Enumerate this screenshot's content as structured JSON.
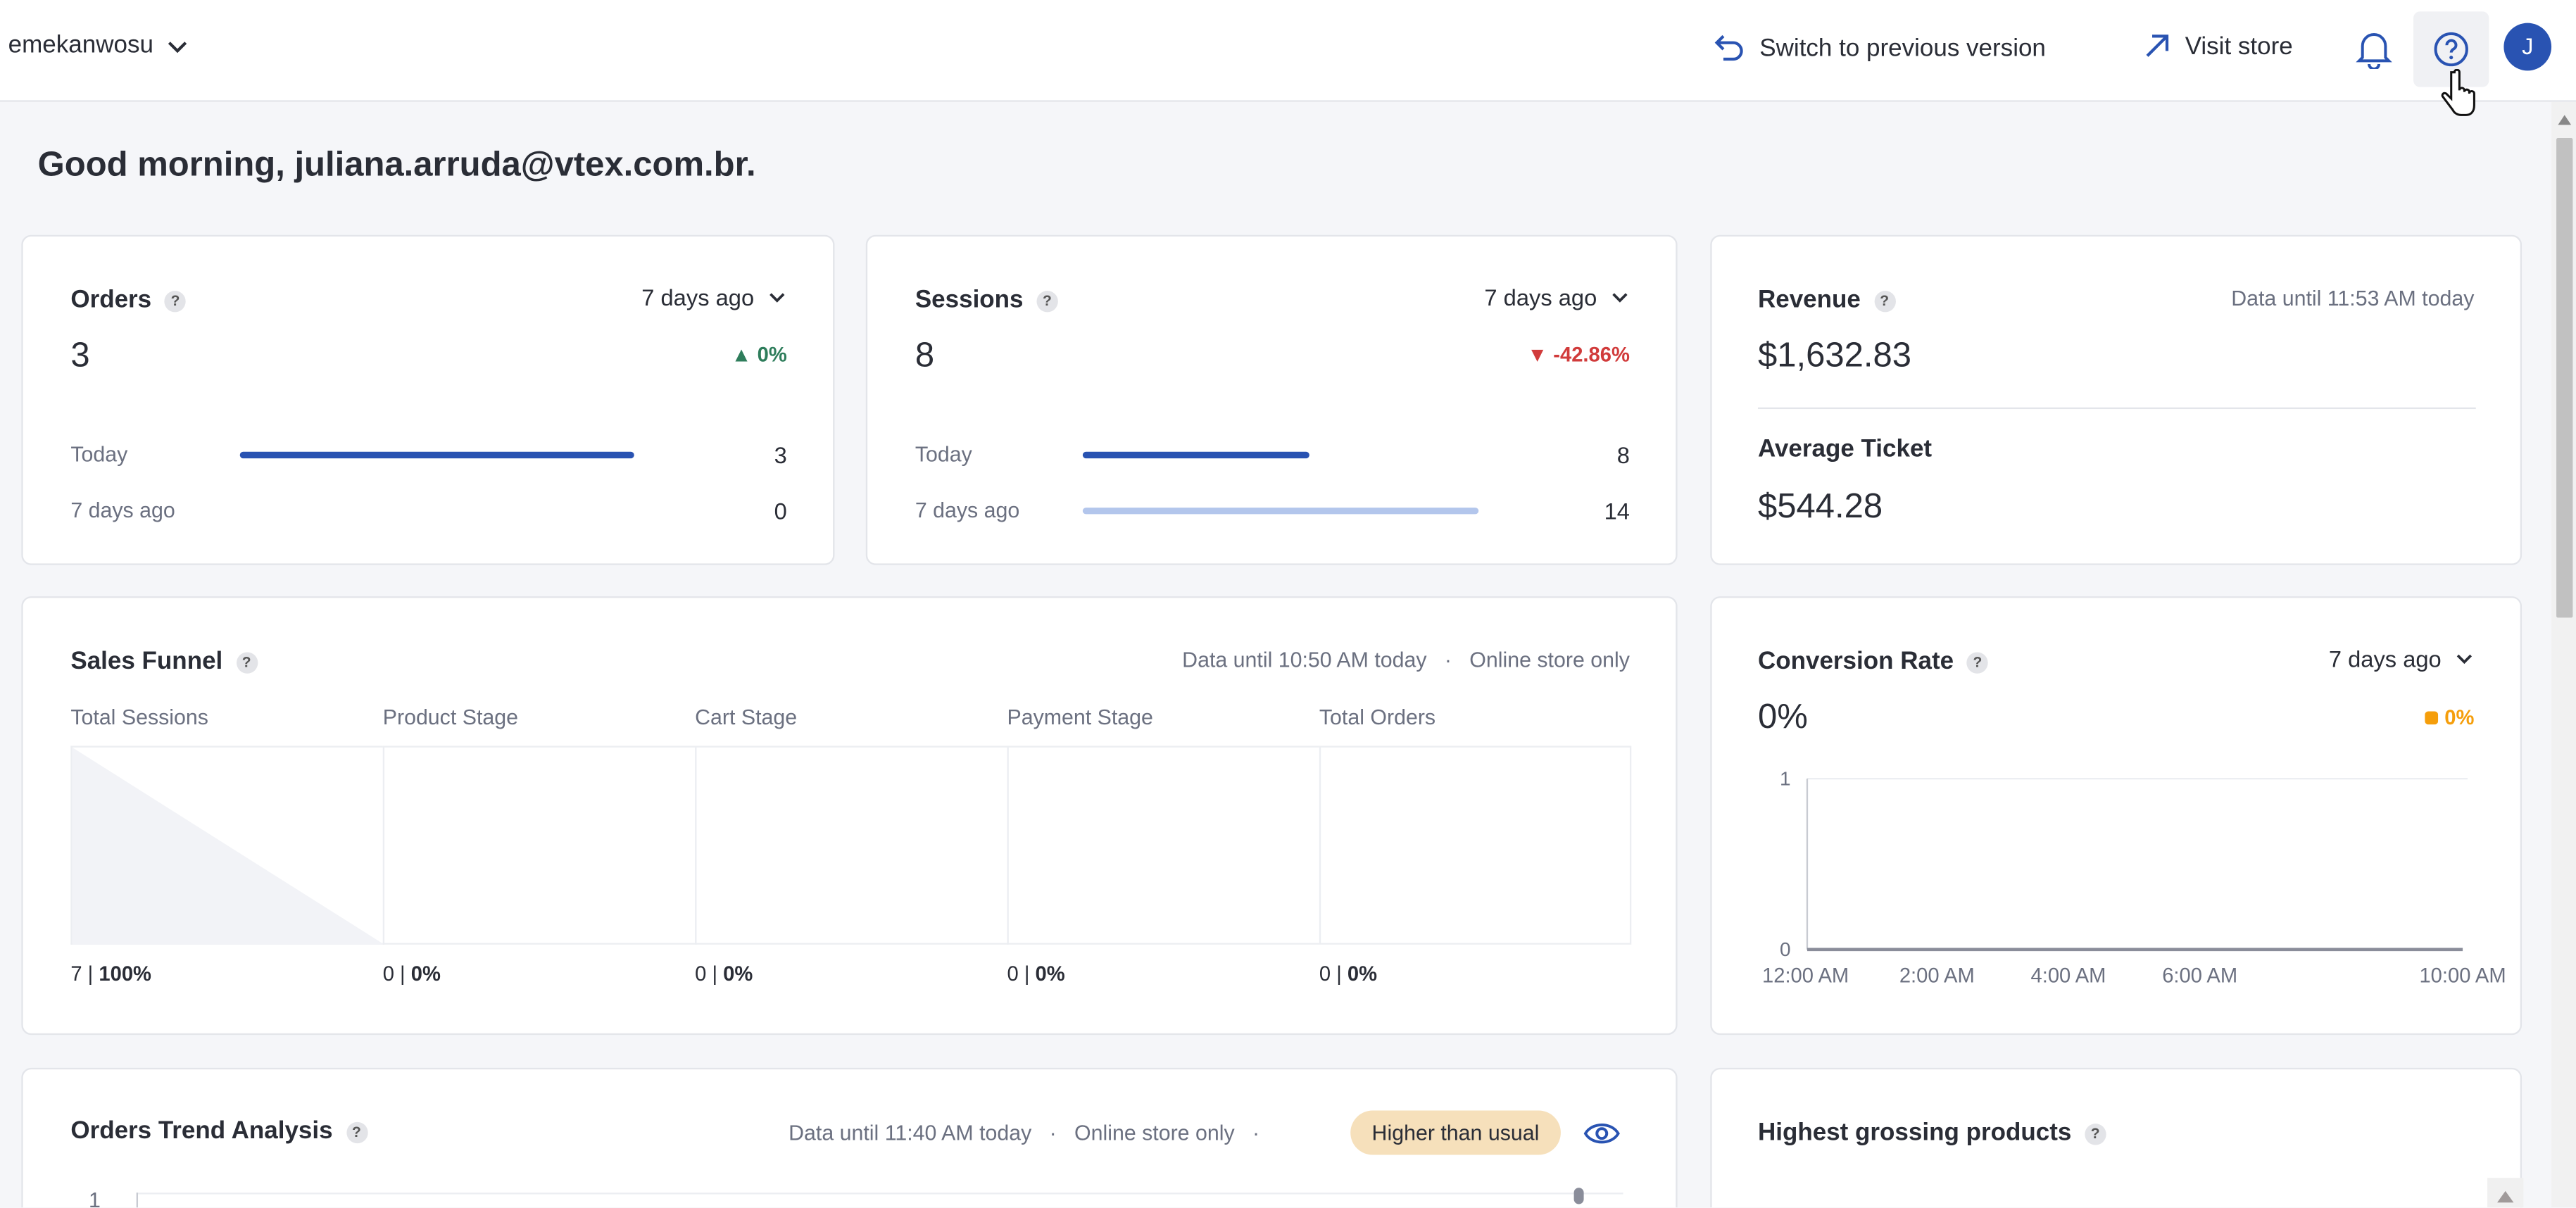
{
  "header": {
    "account": "emekanwosu",
    "switch_version": "Switch to previous version",
    "visit_store": "Visit store",
    "avatar_initial": "J"
  },
  "greeting": "Good morning, juliana.arruda@vtex.com.br.",
  "orders": {
    "title": "Orders",
    "period": "7 days ago",
    "value": "3",
    "change": "0%",
    "change_color": "#2e7d5b",
    "rows": [
      {
        "label": "Today",
        "value": "3",
        "fraction": 1.0
      },
      {
        "label": "7 days ago",
        "value": "0",
        "fraction": 0
      }
    ]
  },
  "sessions": {
    "title": "Sessions",
    "period": "7 days ago",
    "value": "8",
    "change": "-42.86%",
    "change_color": "#d13b3b",
    "rows": [
      {
        "label": "Today",
        "value": "8",
        "fraction": 0.571
      },
      {
        "label": "7 days ago",
        "value": "14",
        "fraction": 1.0
      }
    ]
  },
  "revenue": {
    "title": "Revenue",
    "data_until": "Data until 11:53 AM today",
    "value": "$1,632.83",
    "avg_ticket_label": "Average Ticket",
    "avg_ticket_value": "$544.28"
  },
  "sales_funnel": {
    "title": "Sales Funnel",
    "data_until": "Data until 10:50 AM today",
    "scope": "Online store only",
    "stages": [
      {
        "label": "Total Sessions",
        "count": "7",
        "pct": "100%"
      },
      {
        "label": "Product Stage",
        "count": "0",
        "pct": "0%"
      },
      {
        "label": "Cart Stage",
        "count": "0",
        "pct": "0%"
      },
      {
        "label": "Payment Stage",
        "count": "0",
        "pct": "0%"
      },
      {
        "label": "Total Orders",
        "count": "0",
        "pct": "0%"
      }
    ]
  },
  "conversion": {
    "title": "Conversion Rate",
    "period": "7 days ago",
    "value": "0%",
    "change": "0%",
    "change_color": "#f59e0b"
  },
  "chart_data": [
    {
      "type": "line",
      "title": "Conversion Rate",
      "ylim": [
        0,
        1
      ],
      "yticks": [
        "0",
        "1"
      ],
      "xticks": [
        "12:00 AM",
        "2:00 AM",
        "4:00 AM",
        "6:00 AM",
        "10:00 AM"
      ],
      "series": [
        {
          "x": [
            "12:00 AM",
            "2:00 AM",
            "4:00 AM",
            "6:00 AM",
            "10:00 AM"
          ],
          "values": [
            0,
            0,
            0,
            0,
            0
          ]
        }
      ]
    }
  ],
  "orders_trend": {
    "title": "Orders Trend Analysis",
    "data_until": "Data until 11:40 AM today",
    "scope": "Online store only",
    "badge": "Higher than usual",
    "y_top": "1"
  },
  "highest_grossing": {
    "title": "Highest grossing products"
  },
  "colors": {
    "accent": "#2953b2",
    "bar_today": "#2953b2",
    "bar_past": "#b3c6ec",
    "badge_bg": "#f6e0bb"
  }
}
